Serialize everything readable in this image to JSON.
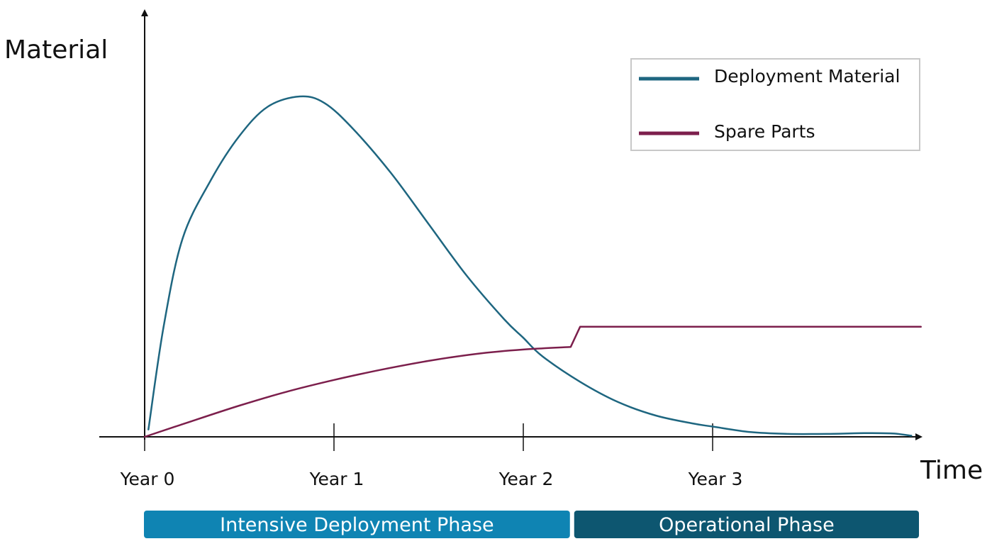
{
  "chart_data": {
    "type": "line",
    "title": "",
    "xlabel": "Time",
    "ylabel": "Material",
    "x_ticks": [
      {
        "label": "Year 0",
        "value": 0
      },
      {
        "label": "Year 1",
        "value": 1
      },
      {
        "label": "Year 2",
        "value": 2
      },
      {
        "label": "Year 3",
        "value": 3
      }
    ],
    "xlim": [
      0,
      4.1
    ],
    "ylim": [
      0,
      100
    ],
    "grid": false,
    "legend_position": "top-right",
    "series": [
      {
        "name": "Deployment Material",
        "color": "#1e6680",
        "points": [
          [
            0.02,
            2
          ],
          [
            0.1,
            30
          ],
          [
            0.2,
            54
          ],
          [
            0.35,
            70
          ],
          [
            0.5,
            82
          ],
          [
            0.65,
            90
          ],
          [
            0.82,
            92.8
          ],
          [
            0.95,
            91
          ],
          [
            1.1,
            84
          ],
          [
            1.3,
            72
          ],
          [
            1.5,
            58
          ],
          [
            1.7,
            44
          ],
          [
            1.9,
            32
          ],
          [
            2.0,
            27
          ],
          [
            2.1,
            22
          ],
          [
            2.3,
            15
          ],
          [
            2.5,
            9.5
          ],
          [
            2.7,
            5.8
          ],
          [
            2.9,
            3.6
          ],
          [
            3.0,
            2.8
          ],
          [
            3.2,
            1.3
          ],
          [
            3.4,
            0.8
          ],
          [
            3.6,
            0.8
          ],
          [
            3.8,
            1.0
          ],
          [
            3.95,
            0.9
          ],
          [
            4.05,
            0.3
          ]
        ]
      },
      {
        "name": "Spare Parts",
        "color": "#7c1f4c",
        "points": [
          [
            0,
            0
          ],
          [
            0.25,
            4.3
          ],
          [
            0.5,
            8.5
          ],
          [
            0.75,
            12.3
          ],
          [
            1.0,
            15.5
          ],
          [
            1.25,
            18.3
          ],
          [
            1.5,
            20.7
          ],
          [
            1.75,
            22.6
          ],
          [
            2.0,
            23.8
          ],
          [
            2.25,
            24.5
          ],
          [
            2.3,
            30
          ],
          [
            4.1,
            30
          ]
        ]
      }
    ],
    "phases": [
      {
        "label": "Intensive Deployment Phase",
        "start": 0,
        "end": 2.25,
        "color": "#0f84b3"
      },
      {
        "label": "Operational Phase",
        "start": 2.25,
        "end": 4.1,
        "color": "#0d5670"
      }
    ]
  }
}
